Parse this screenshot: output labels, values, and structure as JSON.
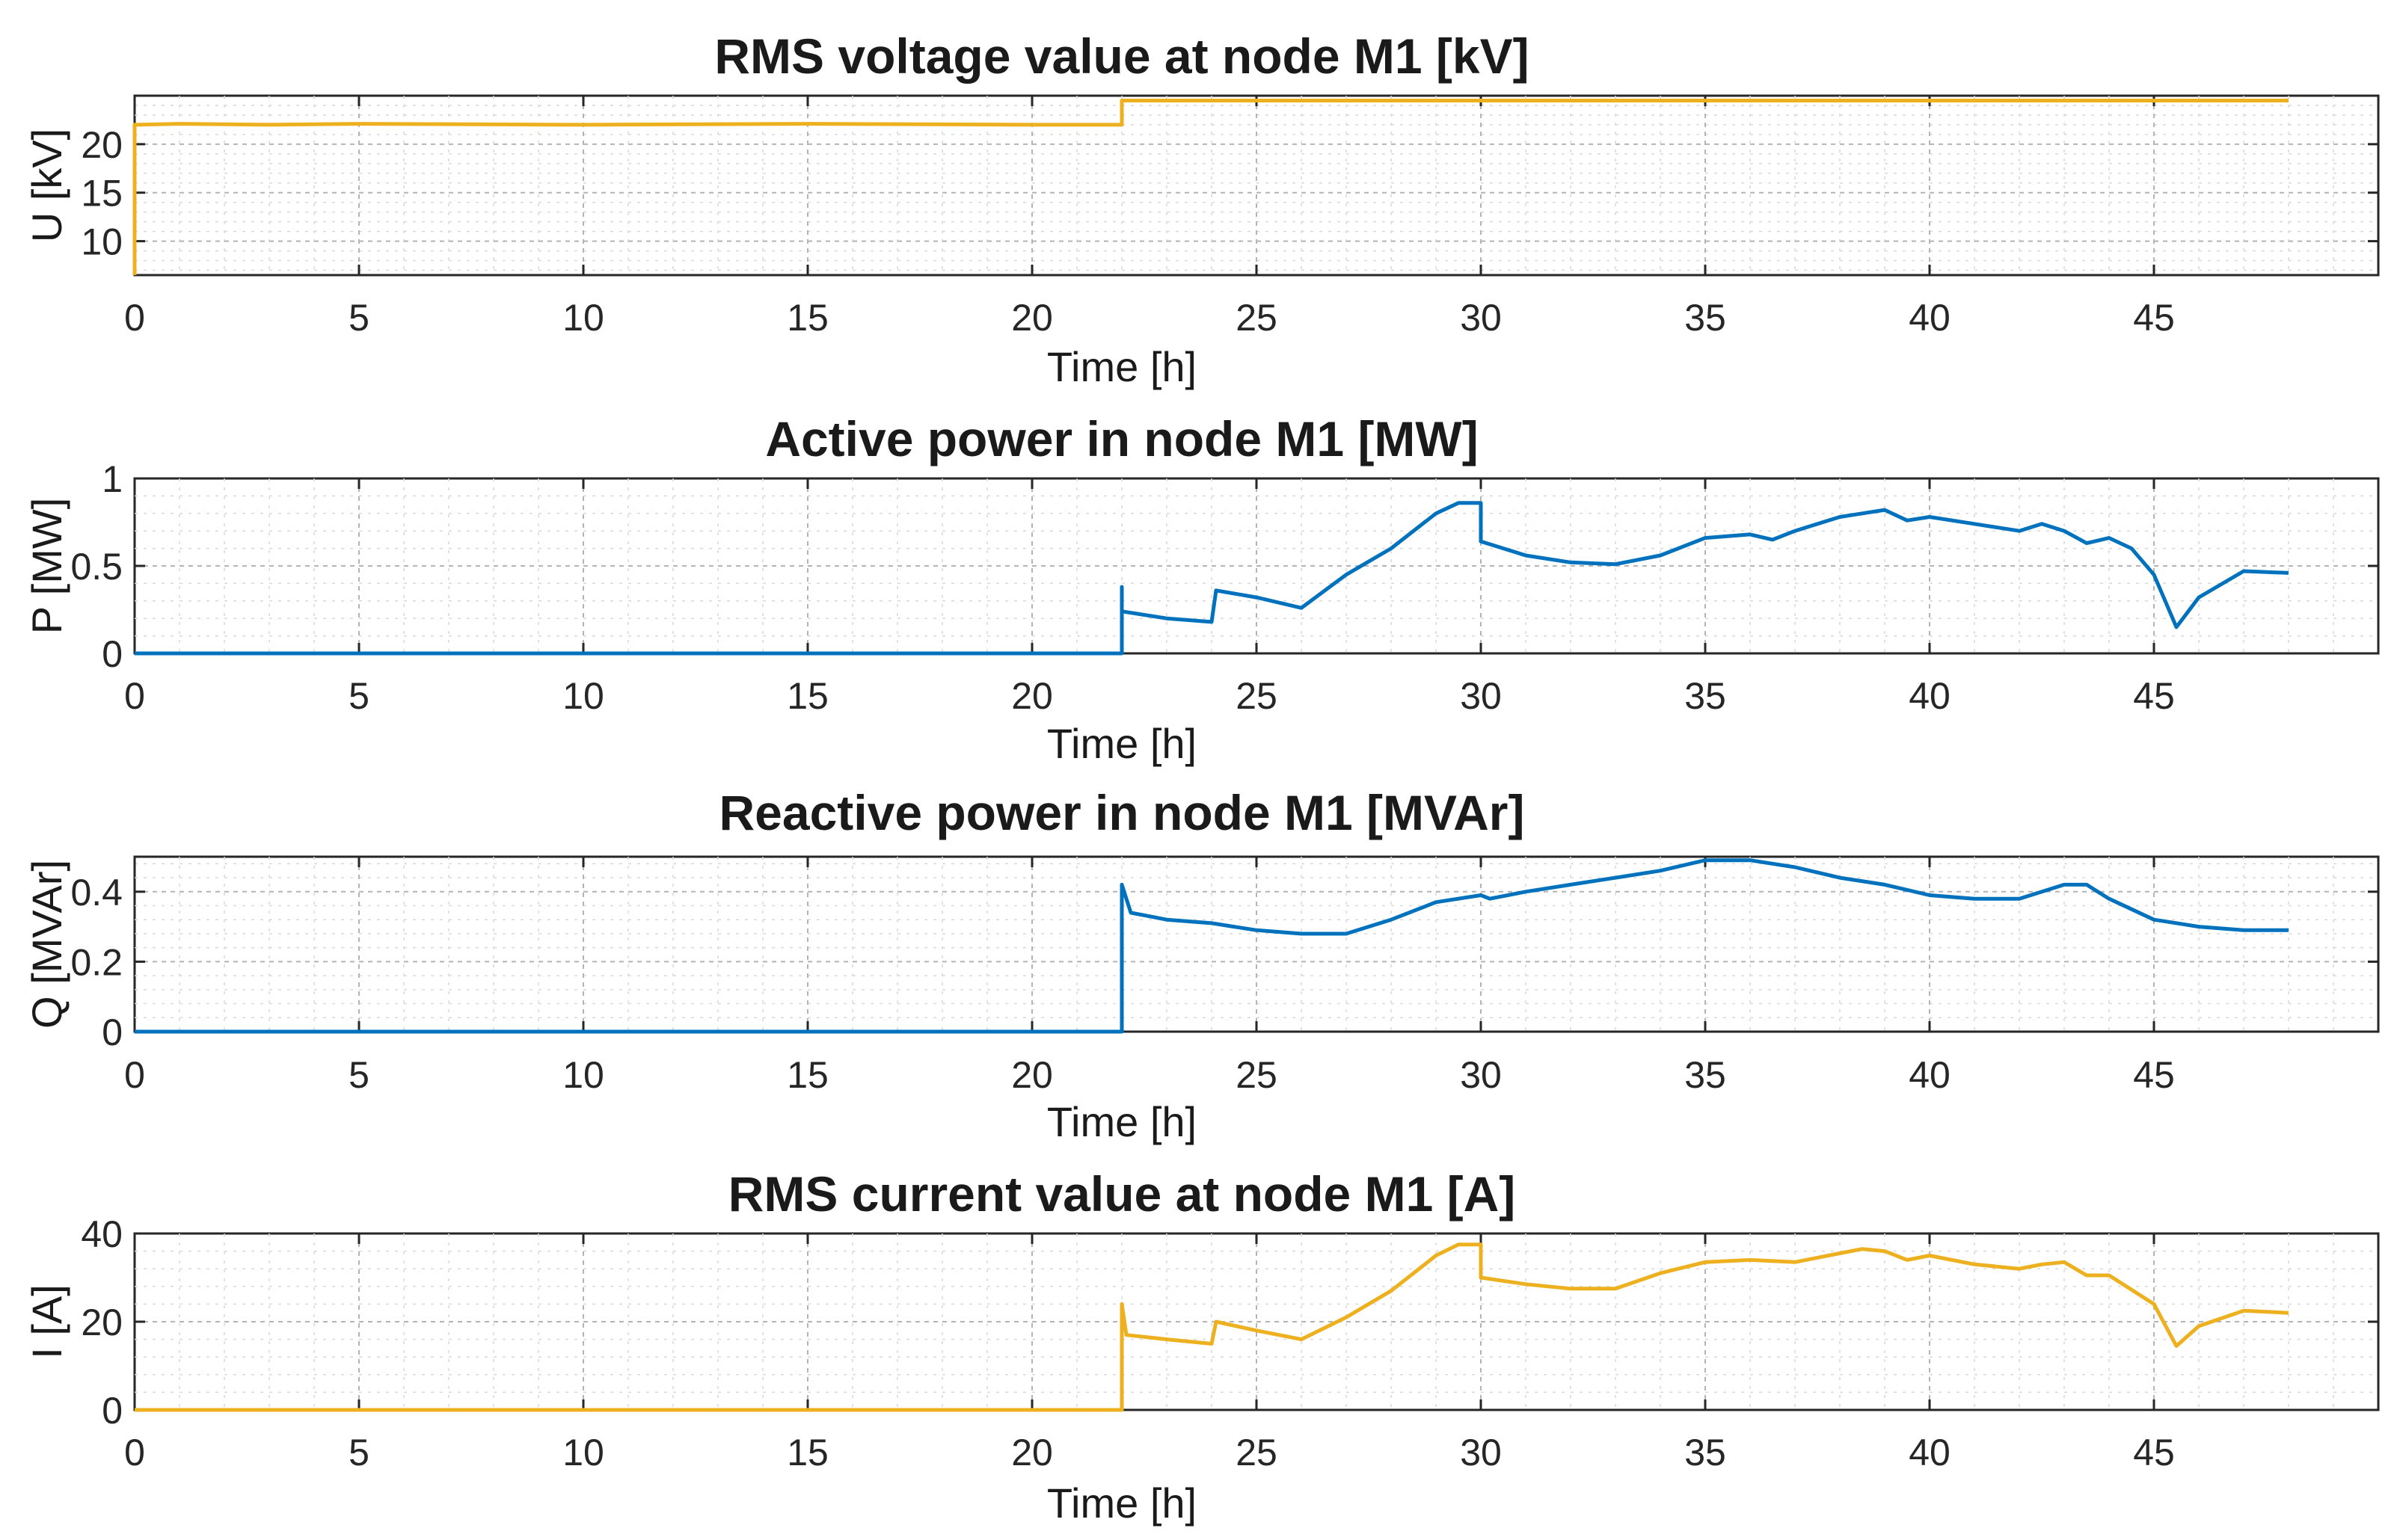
{
  "chart_data": [
    {
      "type": "line",
      "title": "RMS voltage value at node M1 [kV]",
      "xlabel": "Time [h]",
      "ylabel": "U [kV]",
      "xlim": [
        0,
        50
      ],
      "ylim": [
        6.5,
        25
      ],
      "xticks": [
        0,
        5,
        10,
        15,
        20,
        25,
        30,
        35,
        40,
        45
      ],
      "xtick_labels": [
        "0",
        "5",
        "10",
        "15",
        "20",
        "25",
        "30",
        "35",
        "40",
        "45"
      ],
      "yticks": [
        10,
        15,
        20
      ],
      "ytick_labels": [
        "10",
        "15",
        "20"
      ],
      "grid": true,
      "color": "#EDB120",
      "series": [
        {
          "name": "U",
          "x": [
            0,
            0,
            0.05,
            1,
            3,
            5,
            10,
            15,
            20,
            22,
            22,
            25,
            30,
            35,
            40,
            45,
            48
          ],
          "y": [
            6.5,
            22,
            22,
            22.1,
            22,
            22.1,
            22,
            22.1,
            22,
            22,
            24.5,
            24.5,
            24.5,
            24.5,
            24.5,
            24.5,
            24.5
          ]
        }
      ]
    },
    {
      "type": "line",
      "title": "Active power in node M1 [MW]",
      "xlabel": "Time [h]",
      "ylabel": "P [MW]",
      "xlim": [
        0,
        50
      ],
      "ylim": [
        0,
        1
      ],
      "xticks": [
        0,
        5,
        10,
        15,
        20,
        25,
        30,
        35,
        40,
        45
      ],
      "xtick_labels": [
        "0",
        "5",
        "10",
        "15",
        "20",
        "25",
        "30",
        "35",
        "40",
        "45"
      ],
      "yticks": [
        0,
        0.5,
        1
      ],
      "ytick_labels": [
        "0",
        "0.5",
        "1"
      ],
      "grid": true,
      "color": "#0072BD",
      "series": [
        {
          "name": "P",
          "x": [
            0,
            22,
            22,
            22,
            23,
            24,
            24,
            24.1,
            25,
            26,
            27,
            28,
            29,
            29.5,
            30,
            30,
            31,
            32,
            33,
            34,
            35,
            36,
            36.5,
            37,
            38,
            38.5,
            39,
            39.5,
            40,
            41,
            42,
            42.5,
            43,
            43.5,
            44,
            44.5,
            45,
            45.5,
            46,
            47,
            48
          ],
          "y": [
            0,
            0,
            0.38,
            0.24,
            0.2,
            0.18,
            0.18,
            0.36,
            0.32,
            0.26,
            0.45,
            0.6,
            0.8,
            0.86,
            0.86,
            0.64,
            0.56,
            0.52,
            0.51,
            0.56,
            0.66,
            0.68,
            0.65,
            0.7,
            0.78,
            0.8,
            0.82,
            0.76,
            0.78,
            0.74,
            0.7,
            0.74,
            0.7,
            0.63,
            0.66,
            0.6,
            0.45,
            0.15,
            0.32,
            0.47,
            0.46
          ]
        }
      ]
    },
    {
      "type": "line",
      "title": "Reactive power in node M1 [MVAr]",
      "xlabel": "Time [h]",
      "ylabel": "Q [MVAr]",
      "xlim": [
        0,
        50
      ],
      "ylim": [
        0,
        0.5
      ],
      "xticks": [
        0,
        5,
        10,
        15,
        20,
        25,
        30,
        35,
        40,
        45
      ],
      "xtick_labels": [
        "0",
        "5",
        "10",
        "15",
        "20",
        "25",
        "30",
        "35",
        "40",
        "45"
      ],
      "yticks": [
        0,
        0.2,
        0.4
      ],
      "ytick_labels": [
        "0",
        "0.2",
        "0.4"
      ],
      "grid": true,
      "color": "#0072BD",
      "series": [
        {
          "name": "Q",
          "x": [
            0,
            22,
            22,
            22.2,
            23,
            24,
            25,
            26,
            27,
            28,
            29,
            30,
            30.2,
            31,
            32,
            33,
            34,
            35,
            36,
            37,
            38,
            39,
            40,
            41,
            42,
            43,
            43.5,
            44,
            45,
            46,
            47,
            48
          ],
          "y": [
            0,
            0,
            0.42,
            0.34,
            0.32,
            0.31,
            0.29,
            0.28,
            0.28,
            0.32,
            0.37,
            0.39,
            0.38,
            0.4,
            0.42,
            0.44,
            0.46,
            0.49,
            0.49,
            0.47,
            0.44,
            0.42,
            0.39,
            0.38,
            0.38,
            0.42,
            0.42,
            0.38,
            0.32,
            0.3,
            0.29,
            0.29
          ]
        }
      ]
    },
    {
      "type": "line",
      "title": "RMS current value at node M1 [A]",
      "xlabel": "Time [h]",
      "ylabel": "I [A]",
      "xlim": [
        0,
        50
      ],
      "ylim": [
        0,
        40
      ],
      "xticks": [
        0,
        5,
        10,
        15,
        20,
        25,
        30,
        35,
        40,
        45
      ],
      "xtick_labels": [
        "0",
        "5",
        "10",
        "15",
        "20",
        "25",
        "30",
        "35",
        "40",
        "45"
      ],
      "yticks": [
        0,
        20,
        40
      ],
      "ytick_labels": [
        "0",
        "20",
        "40"
      ],
      "grid": true,
      "color": "#EDB120",
      "series": [
        {
          "name": "I",
          "x": [
            0,
            22,
            22,
            22.1,
            23,
            24,
            24,
            24.1,
            25,
            26,
            27,
            28,
            29,
            29.5,
            30,
            30,
            31,
            32,
            33,
            34,
            35,
            36,
            37,
            38,
            38.5,
            39,
            39.5,
            40,
            41,
            42,
            42.5,
            43,
            43.5,
            44,
            45,
            45.5,
            46,
            47,
            48
          ],
          "y": [
            0,
            0,
            24,
            17,
            16,
            15,
            15,
            20,
            18,
            16,
            21,
            27,
            35,
            37.5,
            37.5,
            30,
            28.5,
            27.5,
            27.5,
            31,
            33.5,
            34,
            33.5,
            35.5,
            36.5,
            36,
            34,
            35,
            33,
            32,
            33,
            33.5,
            30.5,
            30.5,
            24,
            14.5,
            19,
            22.5,
            22
          ]
        }
      ]
    }
  ]
}
